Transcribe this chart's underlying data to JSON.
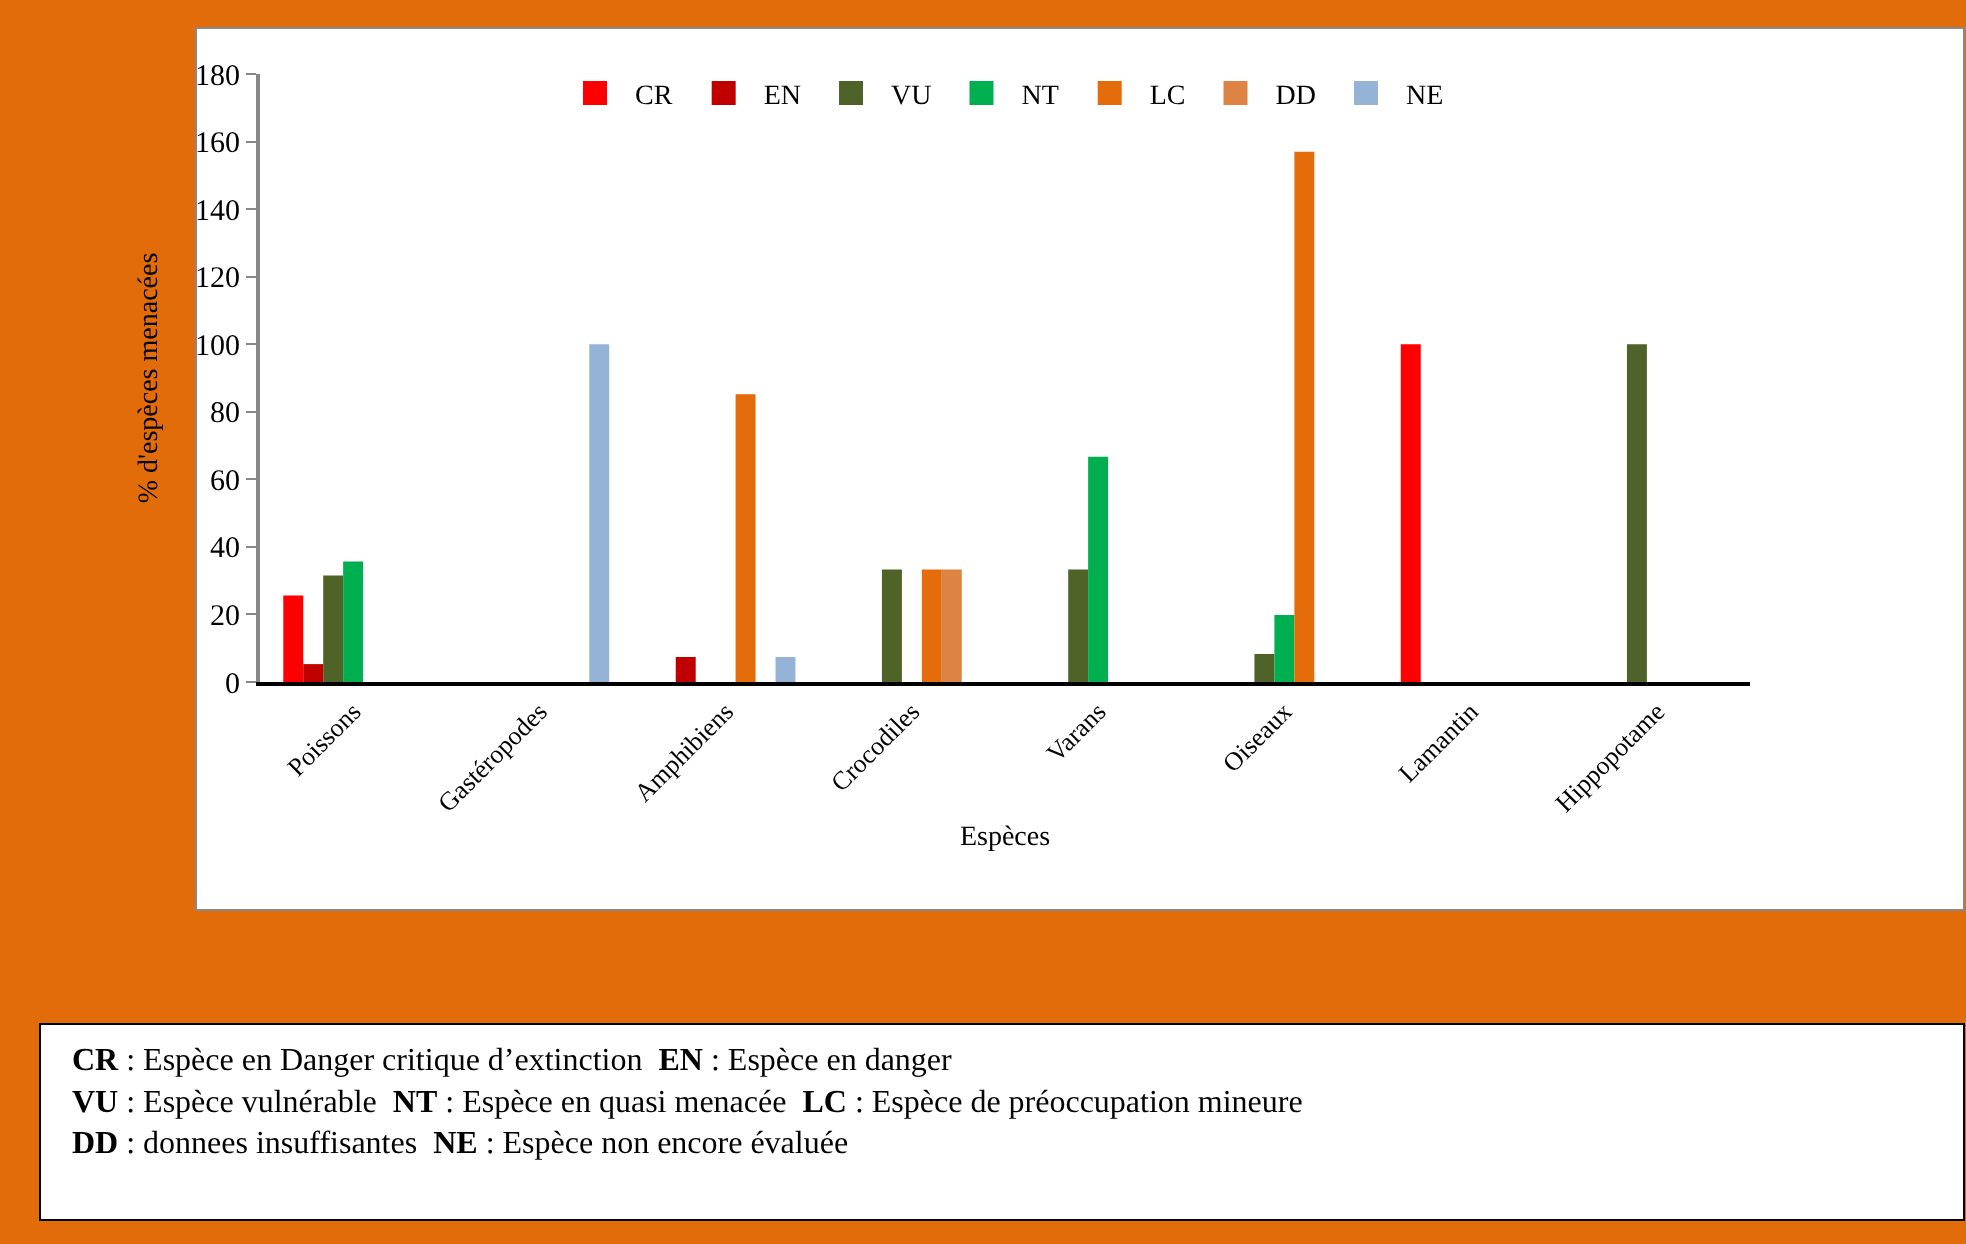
{
  "chart_data": {
    "type": "bar",
    "xlabel": "Espèces",
    "ylabel": "% d'espèces menacées",
    "categories": [
      "Poissons",
      "Gastéropodes",
      "Amphibiens",
      "Crocodiles",
      "Varans",
      "Oiseaux",
      "Lamantin",
      "Hippopotame"
    ],
    "series": [
      {
        "name": "CR",
        "color": "#ff0000",
        "values": [
          25.6,
          null,
          null,
          null,
          null,
          null,
          100,
          null
        ]
      },
      {
        "name": "EN",
        "color": "#c00000",
        "values": [
          5.3,
          null,
          7.4,
          null,
          null,
          null,
          null,
          null
        ]
      },
      {
        "name": "VU",
        "color": "#4f6228",
        "values": [
          31.5,
          null,
          null,
          33.3,
          33.3,
          8.3,
          null,
          100
        ]
      },
      {
        "name": "NT",
        "color": "#00b050",
        "values": [
          35.7,
          null,
          null,
          null,
          66.7,
          19.8,
          null,
          null
        ]
      },
      {
        "name": "LC",
        "color": "#e46c0a",
        "values": [
          null,
          null,
          85.2,
          33.3,
          null,
          157,
          null,
          null
        ]
      },
      {
        "name": "DD",
        "color": "#dd8444",
        "values": [
          null,
          null,
          null,
          33.3,
          null,
          null,
          null,
          null
        ]
      },
      {
        "name": "NE",
        "color": "#95b3d7",
        "values": [
          null,
          100,
          7.4,
          null,
          null,
          null,
          null,
          null
        ]
      }
    ],
    "ylim": [
      0,
      180
    ],
    "yticks": [
      0,
      20,
      40,
      60,
      80,
      100,
      120,
      140,
      160,
      180
    ],
    "grid": false,
    "legend": "top",
    "annotations": [
      "CR : Espèce en Danger critique d’extinction",
      "EN : Espèce en danger",
      "VU : Espèce vulnérable",
      "NT : Espèce en quasi menacée",
      "LC : Espèce de préoccupation mineure",
      "DD : donnees insuffisantes",
      "NE : Espèce non encore évaluée"
    ]
  }
}
